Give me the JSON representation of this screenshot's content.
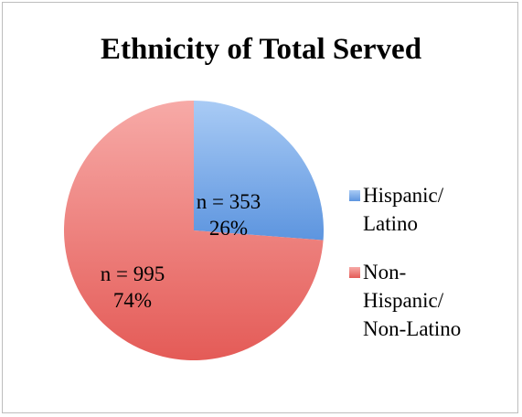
{
  "chart_data": {
    "type": "pie",
    "title": "Ethnicity of Total Served",
    "slices": [
      {
        "name": "Hispanic/\nLatino",
        "value": 353,
        "percent": 26,
        "count_label": "n = 353",
        "percent_label": "26%",
        "color": "#6fa3e6"
      },
      {
        "name": "Non-\nHispanic/\nNon-Latino",
        "value": 995,
        "percent": 74,
        "count_label": "n = 995",
        "percent_label": "74%",
        "color": "#e96c68"
      }
    ],
    "legend_position": "right"
  }
}
